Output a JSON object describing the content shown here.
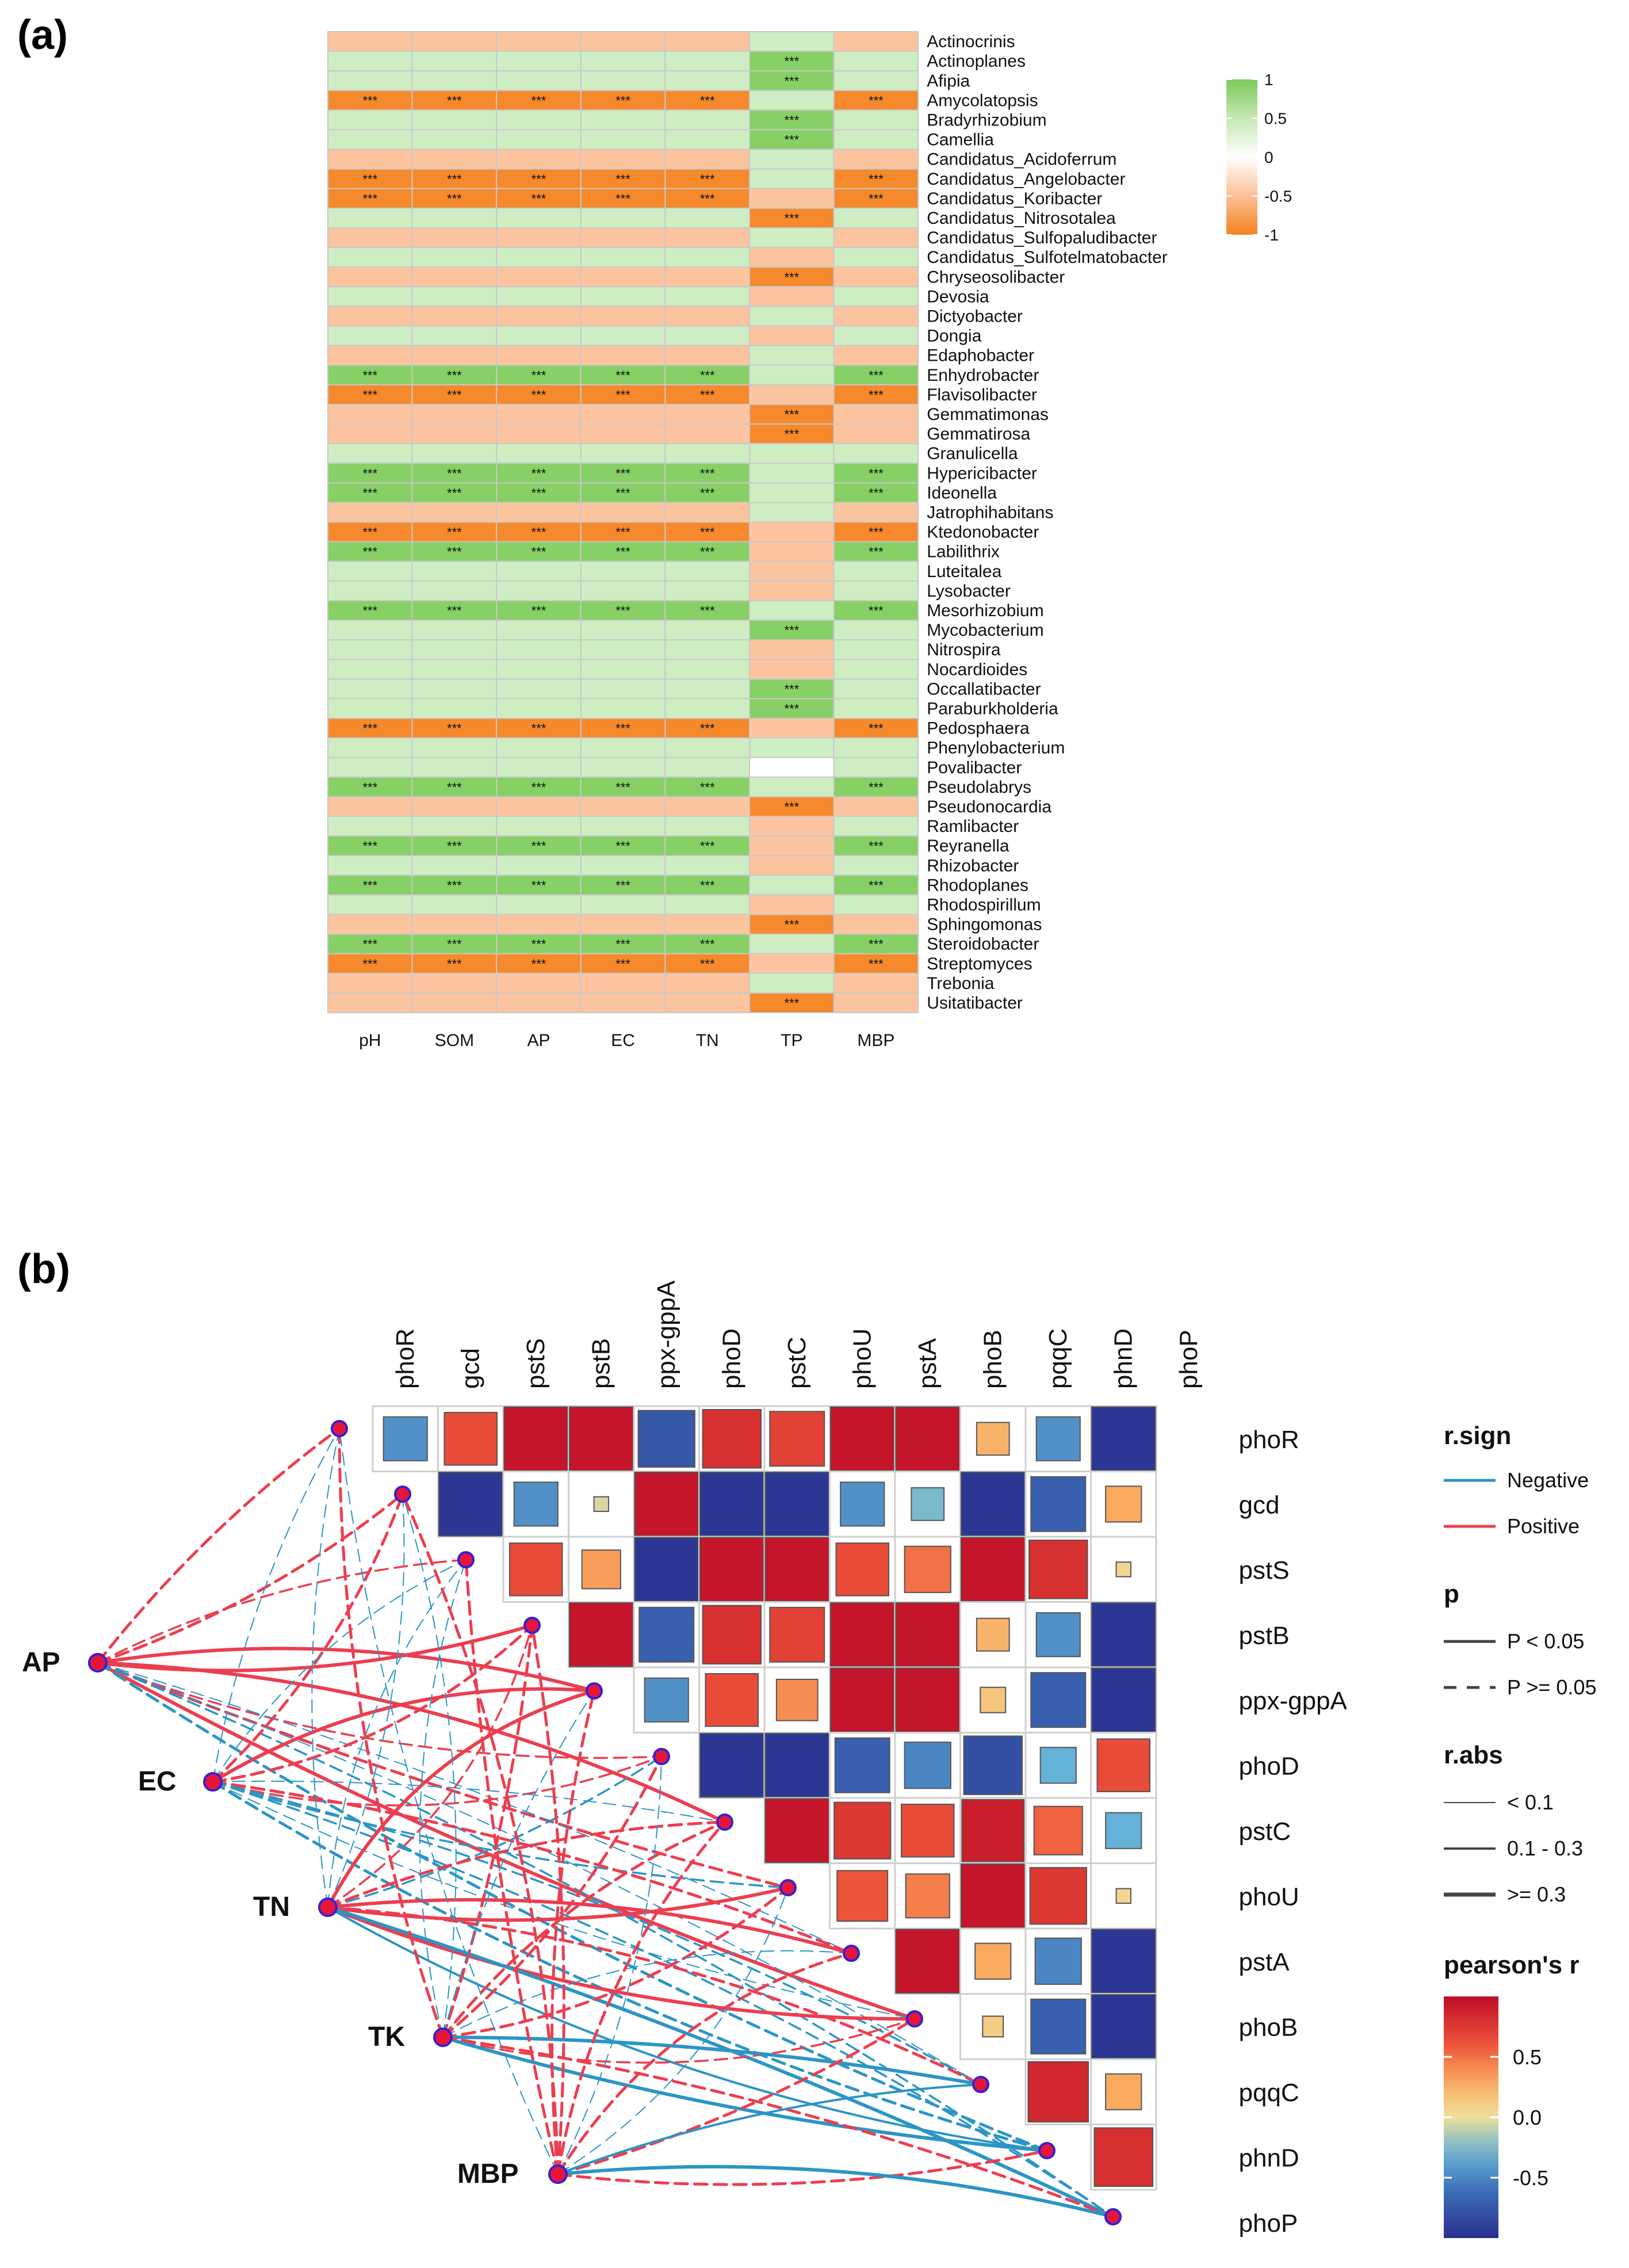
{
  "panel_labels": {
    "a": "(a)",
    "b": "(b)"
  },
  "colors": {
    "orange_strong": "#f5892c",
    "orange_light": "#fcc49e",
    "green_strong": "#86d065",
    "green_light": "#cfedc3",
    "blank": "#ffffff",
    "negative_line": "#2b95c6",
    "positive_line": "#ec3e4f",
    "node_fill": "#e8153b",
    "node_stroke": "#3321d4"
  },
  "chart_data": [
    {
      "type": "heatmap",
      "title": "",
      "columns": [
        "pH",
        "SOM",
        "AP",
        "EC",
        "TN",
        "TP",
        "MBP"
      ],
      "rows": [
        "Actinocrinis",
        "Actinoplanes",
        "Afipia",
        "Amycolatopsis",
        "Bradyrhizobium",
        "Camellia",
        "Candidatus_Acidoferrum",
        "Candidatus_Angelobacter",
        "Candidatus_Koribacter",
        "Candidatus_Nitrosotalea",
        "Candidatus_Sulfopaludibacter",
        "Candidatus_Sulfotelmatobacter",
        "Chryseosolibacter",
        "Devosia",
        "Dictyobacter",
        "Dongia",
        "Edaphobacter",
        "Enhydrobacter",
        "Flavisolibacter",
        "Gemmatimonas",
        "Gemmatirosa",
        "Granulicella",
        "Hypericibacter",
        "Ideonella",
        "Jatrophihabitans",
        "Ktedonobacter",
        "Labilithrix",
        "Luteitalea",
        "Lysobacter",
        "Mesorhizobium",
        "Mycobacterium",
        "Nitrospira",
        "Nocardioides",
        "Occallatibacter",
        "Paraburkholderia",
        "Pedosphaera",
        "Phenylobacterium",
        "Povalibacter",
        "Pseudolabrys",
        "Pseudonocardia",
        "Ramlibacter",
        "Reyranella",
        "Rhizobacter",
        "Rhodoplanes",
        "Rhodospirillum",
        "Sphingomonas",
        "Steroidobacter",
        "Streptomyces",
        "Trebonia",
        "Usitatibacter"
      ],
      "values_note": "encoded sign and strength: -1 strong negative, -0.5 weak negative, 0 zero, 0.5 weak positive, 1 strong positive",
      "values": [
        [
          -0.5,
          -0.5,
          -0.5,
          -0.5,
          -0.5,
          0.5,
          -0.5
        ],
        [
          0.5,
          0.5,
          0.5,
          0.5,
          0.5,
          1,
          0.5
        ],
        [
          0.5,
          0.5,
          0.5,
          0.5,
          0.5,
          1,
          0.5
        ],
        [
          -1,
          -1,
          -1,
          -1,
          -1,
          0.5,
          -1
        ],
        [
          0.5,
          0.5,
          0.5,
          0.5,
          0.5,
          1,
          0.5
        ],
        [
          0.5,
          0.5,
          0.5,
          0.5,
          0.5,
          1,
          0.5
        ],
        [
          -0.5,
          -0.5,
          -0.5,
          -0.5,
          -0.5,
          0.5,
          -0.5
        ],
        [
          -1,
          -1,
          -1,
          -1,
          -1,
          0.5,
          -1
        ],
        [
          -1,
          -1,
          -1,
          -1,
          -1,
          -0.5,
          -1
        ],
        [
          0.5,
          0.5,
          0.5,
          0.5,
          0.5,
          -1,
          0.5
        ],
        [
          -0.5,
          -0.5,
          -0.5,
          -0.5,
          -0.5,
          0.5,
          -0.5
        ],
        [
          0.5,
          0.5,
          0.5,
          0.5,
          0.5,
          -0.5,
          0.5
        ],
        [
          -0.5,
          -0.5,
          -0.5,
          -0.5,
          -0.5,
          -1,
          -0.5
        ],
        [
          0.5,
          0.5,
          0.5,
          0.5,
          0.5,
          -0.5,
          0.5
        ],
        [
          -0.5,
          -0.5,
          -0.5,
          -0.5,
          -0.5,
          0.5,
          -0.5
        ],
        [
          0.5,
          0.5,
          0.5,
          0.5,
          0.5,
          -0.5,
          0.5
        ],
        [
          -0.5,
          -0.5,
          -0.5,
          -0.5,
          -0.5,
          0.5,
          -0.5
        ],
        [
          1,
          1,
          1,
          1,
          1,
          0.5,
          1
        ],
        [
          -1,
          -1,
          -1,
          -1,
          -1,
          -0.5,
          -1
        ],
        [
          -0.5,
          -0.5,
          -0.5,
          -0.5,
          -0.5,
          -1,
          -0.5
        ],
        [
          -0.5,
          -0.5,
          -0.5,
          -0.5,
          -0.5,
          -1,
          -0.5
        ],
        [
          0.5,
          0.5,
          0.5,
          0.5,
          0.5,
          0.5,
          0.5
        ],
        [
          1,
          1,
          1,
          1,
          1,
          0.5,
          1
        ],
        [
          1,
          1,
          1,
          1,
          1,
          0.5,
          1
        ],
        [
          -0.5,
          -0.5,
          -0.5,
          -0.5,
          -0.5,
          0.5,
          -0.5
        ],
        [
          -1,
          -1,
          -1,
          -1,
          -1,
          -0.5,
          -1
        ],
        [
          1,
          1,
          1,
          1,
          1,
          -0.5,
          1
        ],
        [
          0.5,
          0.5,
          0.5,
          0.5,
          0.5,
          -0.5,
          0.5
        ],
        [
          0.5,
          0.5,
          0.5,
          0.5,
          0.5,
          -0.5,
          0.5
        ],
        [
          1,
          1,
          1,
          1,
          1,
          0.5,
          1
        ],
        [
          0.5,
          0.5,
          0.5,
          0.5,
          0.5,
          1,
          0.5
        ],
        [
          0.5,
          0.5,
          0.5,
          0.5,
          0.5,
          -0.5,
          0.5
        ],
        [
          0.5,
          0.5,
          0.5,
          0.5,
          0.5,
          -0.5,
          0.5
        ],
        [
          0.5,
          0.5,
          0.5,
          0.5,
          0.5,
          1,
          0.5
        ],
        [
          0.5,
          0.5,
          0.5,
          0.5,
          0.5,
          1,
          0.5
        ],
        [
          -1,
          -1,
          -1,
          -1,
          -1,
          -0.5,
          -1
        ],
        [
          0.5,
          0.5,
          0.5,
          0.5,
          0.5,
          0.5,
          0.5
        ],
        [
          0.5,
          0.5,
          0.5,
          0.5,
          0.5,
          0,
          0.5
        ],
        [
          1,
          1,
          1,
          1,
          1,
          0.5,
          1
        ],
        [
          -0.5,
          -0.5,
          -0.5,
          -0.5,
          -0.5,
          -1,
          -0.5
        ],
        [
          0.5,
          0.5,
          0.5,
          0.5,
          0.5,
          -0.5,
          0.5
        ],
        [
          1,
          1,
          1,
          1,
          1,
          -0.5,
          1
        ],
        [
          0.5,
          0.5,
          0.5,
          0.5,
          0.5,
          -0.5,
          0.5
        ],
        [
          1,
          1,
          1,
          1,
          1,
          0.5,
          1
        ],
        [
          0.5,
          0.5,
          0.5,
          0.5,
          0.5,
          -0.5,
          0.5
        ],
        [
          -0.5,
          -0.5,
          -0.5,
          -0.5,
          -0.5,
          -1,
          -0.5
        ],
        [
          1,
          1,
          1,
          1,
          1,
          0.5,
          1
        ],
        [
          -1,
          -1,
          -1,
          -1,
          -1,
          -0.5,
          -1
        ],
        [
          -0.5,
          -0.5,
          -0.5,
          -0.5,
          -0.5,
          0.5,
          -0.5
        ],
        [
          -0.5,
          -0.5,
          -0.5,
          -0.5,
          -0.5,
          -1,
          -0.5
        ]
      ],
      "significance_label": "***",
      "significance_rows_all_but_TP": [
        3,
        7,
        8,
        17,
        18,
        22,
        23,
        25,
        26,
        29,
        35,
        38,
        41,
        43,
        46,
        47
      ],
      "significance_rows_TP_only": [
        1,
        2,
        4,
        5,
        9,
        12,
        19,
        20,
        30,
        33,
        34,
        39,
        45,
        49
      ],
      "colorbar": {
        "ticks": [
          "1",
          "0.5",
          "0",
          "-0.5",
          "-1"
        ],
        "range": [
          -1,
          1
        ]
      }
    },
    {
      "type": "heatmap",
      "title": "",
      "top_labels": [
        "phoR",
        "gcd",
        "pstS",
        "pstB",
        "ppx-gppA",
        "phoD",
        "pstC",
        "phoU",
        "pstA",
        "phoB",
        "pqqC",
        "phnD",
        "phoP"
      ],
      "right_labels": [
        "phoR",
        "gcd",
        "pstS",
        "pstB",
        "ppx-gppA",
        "phoD",
        "pstC",
        "phoU",
        "pstA",
        "phoB",
        "pqqC",
        "phnD",
        "phoP"
      ],
      "cells": [
        {
          "r": 0,
          "c": 0,
          "v": -0.45
        },
        {
          "r": 0,
          "c": 1,
          "v": 0.65
        },
        {
          "r": 0,
          "c": 2,
          "v": 0.95
        },
        {
          "r": 0,
          "c": 3,
          "v": 0.95
        },
        {
          "r": 0,
          "c": 4,
          "v": -0.75
        },
        {
          "r": 0,
          "c": 5,
          "v": 0.8
        },
        {
          "r": 0,
          "c": 6,
          "v": 0.7
        },
        {
          "r": 0,
          "c": 7,
          "v": 0.95
        },
        {
          "r": 0,
          "c": 8,
          "v": 0.95
        },
        {
          "r": 0,
          "c": 9,
          "v": 0.25
        },
        {
          "r": 0,
          "c": 10,
          "v": -0.45
        },
        {
          "r": 0,
          "c": 11,
          "v": -0.95
        },
        {
          "r": 1,
          "c": 1,
          "v": -0.95
        },
        {
          "r": 1,
          "c": 2,
          "v": -0.45
        },
        {
          "r": 1,
          "c": 3,
          "v": -0.05
        },
        {
          "r": 1,
          "c": 4,
          "v": 0.95
        },
        {
          "r": 1,
          "c": 5,
          "v": -0.95
        },
        {
          "r": 1,
          "c": 6,
          "v": -0.95
        },
        {
          "r": 1,
          "c": 7,
          "v": -0.45
        },
        {
          "r": 1,
          "c": 8,
          "v": -0.25
        },
        {
          "r": 1,
          "c": 9,
          "v": -0.95
        },
        {
          "r": 1,
          "c": 10,
          "v": -0.7
        },
        {
          "r": 1,
          "c": 11,
          "v": 0.3
        },
        {
          "r": 2,
          "c": 2,
          "v": 0.65
        },
        {
          "r": 2,
          "c": 3,
          "v": 0.35
        },
        {
          "r": 2,
          "c": 4,
          "v": -0.95
        },
        {
          "r": 2,
          "c": 5,
          "v": 0.95
        },
        {
          "r": 2,
          "c": 6,
          "v": 0.95
        },
        {
          "r": 2,
          "c": 7,
          "v": 0.65
        },
        {
          "r": 2,
          "c": 8,
          "v": 0.5
        },
        {
          "r": 2,
          "c": 9,
          "v": 0.95
        },
        {
          "r": 2,
          "c": 10,
          "v": 0.8
        },
        {
          "r": 2,
          "c": 11,
          "v": 0.05
        },
        {
          "r": 3,
          "c": 3,
          "v": 0.95
        },
        {
          "r": 3,
          "c": 4,
          "v": -0.7
        },
        {
          "r": 3,
          "c": 5,
          "v": 0.8
        },
        {
          "r": 3,
          "c": 6,
          "v": 0.7
        },
        {
          "r": 3,
          "c": 7,
          "v": 0.95
        },
        {
          "r": 3,
          "c": 8,
          "v": 0.95
        },
        {
          "r": 3,
          "c": 9,
          "v": 0.25
        },
        {
          "r": 3,
          "c": 10,
          "v": -0.45
        },
        {
          "r": 3,
          "c": 11,
          "v": -0.95
        },
        {
          "r": 4,
          "c": 4,
          "v": -0.45
        },
        {
          "r": 4,
          "c": 5,
          "v": 0.65
        },
        {
          "r": 4,
          "c": 6,
          "v": 0.4
        },
        {
          "r": 4,
          "c": 7,
          "v": 0.95
        },
        {
          "r": 4,
          "c": 8,
          "v": 0.95
        },
        {
          "r": 4,
          "c": 9,
          "v": 0.15
        },
        {
          "r": 4,
          "c": 10,
          "v": -0.7
        },
        {
          "r": 4,
          "c": 11,
          "v": -0.95
        },
        {
          "r": 5,
          "c": 5,
          "v": -0.95
        },
        {
          "r": 5,
          "c": 6,
          "v": -0.95
        },
        {
          "r": 5,
          "c": 7,
          "v": -0.7
        },
        {
          "r": 5,
          "c": 8,
          "v": -0.5
        },
        {
          "r": 5,
          "c": 9,
          "v": -0.8
        },
        {
          "r": 5,
          "c": 10,
          "v": -0.3
        },
        {
          "r": 5,
          "c": 11,
          "v": 0.65
        },
        {
          "r": 6,
          "c": 6,
          "v": 0.95
        },
        {
          "r": 6,
          "c": 7,
          "v": 0.75
        },
        {
          "r": 6,
          "c": 8,
          "v": 0.65
        },
        {
          "r": 6,
          "c": 9,
          "v": 0.9
        },
        {
          "r": 6,
          "c": 10,
          "v": 0.55
        },
        {
          "r": 6,
          "c": 11,
          "v": -0.3
        },
        {
          "r": 7,
          "c": 7,
          "v": 0.6
        },
        {
          "r": 7,
          "c": 8,
          "v": 0.45
        },
        {
          "r": 7,
          "c": 9,
          "v": 0.95
        },
        {
          "r": 7,
          "c": 10,
          "v": 0.75
        },
        {
          "r": 7,
          "c": 11,
          "v": 0.05
        },
        {
          "r": 8,
          "c": 8,
          "v": 0.95
        },
        {
          "r": 8,
          "c": 9,
          "v": 0.3
        },
        {
          "r": 8,
          "c": 10,
          "v": -0.5
        },
        {
          "r": 8,
          "c": 11,
          "v": -0.95
        },
        {
          "r": 9,
          "c": 9,
          "v": 0.1
        },
        {
          "r": 9,
          "c": 10,
          "v": -0.7
        },
        {
          "r": 9,
          "c": 11,
          "v": -0.95
        },
        {
          "r": 10,
          "c": 10,
          "v": 0.85
        },
        {
          "r": 10,
          "c": 11,
          "v": 0.3
        },
        {
          "r": 11,
          "c": 11,
          "v": 0.8
        }
      ],
      "network_nodes": [
        "AP",
        "EC",
        "TN",
        "TK",
        "MBP"
      ],
      "legend": {
        "rsign_title": "r.sign",
        "rsign_items": [
          "Negative",
          "Positive"
        ],
        "p_title": "p",
        "p_items": [
          "P < 0.05",
          "P >= 0.05"
        ],
        "rabs_title": "r.abs",
        "rabs_items": [
          "< 0.1",
          "0.1 - 0.3",
          ">= 0.3"
        ],
        "pearson_title": "pearson's r",
        "pearson_ticks": [
          "0.5",
          "0.0",
          "-0.5"
        ]
      }
    }
  ]
}
